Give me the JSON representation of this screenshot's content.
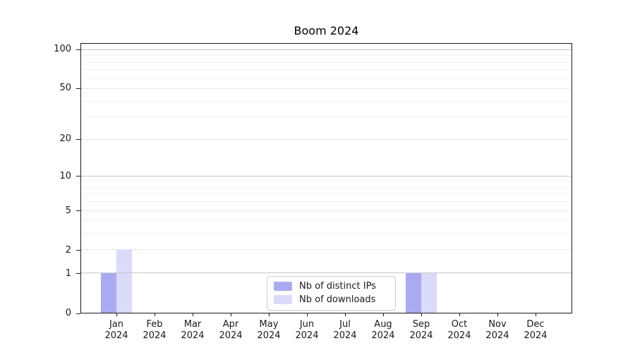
{
  "chart_data": {
    "type": "bar",
    "title": "Boom 2024",
    "categories": [
      "Jan 2024",
      "Feb 2024",
      "Mar 2024",
      "Apr 2024",
      "May 2024",
      "Jun 2024",
      "Jul 2024",
      "Aug 2024",
      "Sep 2024",
      "Oct 2024",
      "Nov 2024",
      "Dec 2024"
    ],
    "series": [
      {
        "name": "Nb of distinct IPs",
        "color": "#aaaaf3",
        "values": [
          1,
          0,
          0,
          0,
          0,
          0,
          0,
          0,
          1,
          0,
          0,
          0
        ]
      },
      {
        "name": "Nb of downloads",
        "color": "#dadaf9",
        "values": [
          2,
          0,
          0,
          0,
          0,
          0,
          0,
          0,
          1,
          0,
          0,
          0
        ]
      }
    ],
    "y_axis": {
      "scale": "log1p",
      "tick_values": [
        0,
        1,
        2,
        5,
        10,
        20,
        50,
        100
      ],
      "tick_labels": [
        "0",
        "1",
        "2",
        "5",
        "10",
        "20",
        "50",
        "100"
      ],
      "emphasized_gridlines": [
        1,
        10,
        100
      ],
      "minor_gridlines": [
        3,
        4,
        6,
        7,
        8,
        9,
        30,
        40,
        60,
        70,
        80,
        90
      ],
      "ylim": [
        0,
        112
      ]
    },
    "legend": {
      "position": "lower center"
    },
    "grid": "horizontal",
    "xlabel": "",
    "ylabel": ""
  }
}
